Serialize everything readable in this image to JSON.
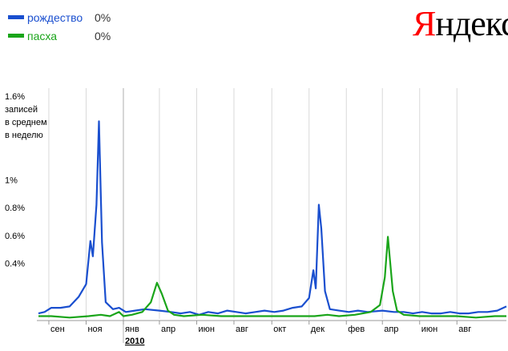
{
  "legend": [
    {
      "name": "рождество",
      "value": "0%",
      "color": "#1a4fcf"
    },
    {
      "name": "пасха",
      "value": "0%",
      "color": "#1aa51a"
    }
  ],
  "logo": {
    "first": "Я",
    "rest": "ндекс"
  },
  "chart_data": {
    "type": "line",
    "ylim": [
      0,
      1.6
    ],
    "yticks": [
      {
        "value": 0.4,
        "label": "0.4%"
      },
      {
        "value": 0.6,
        "label": "0.6%"
      },
      {
        "value": 0.8,
        "label": "0.8%"
      },
      {
        "value": 1.0,
        "label": "1%"
      },
      {
        "value": 1.6,
        "label": "1.6%"
      }
    ],
    "ylabel_lines": [
      "записей",
      "в среднем",
      "в неделю"
    ],
    "grid": true,
    "x_range": [
      "2009-08-15",
      "2011-09-20"
    ],
    "xticks": [
      {
        "date": "2009-09-01",
        "label": "сен"
      },
      {
        "date": "2009-11-01",
        "label": "ноя"
      },
      {
        "date": "2010-01-01",
        "label": "янв"
      },
      {
        "date": "2010-03-01",
        "label": "апр"
      },
      {
        "date": "2010-05-01",
        "label": "июн"
      },
      {
        "date": "2010-07-01",
        "label": "авг"
      },
      {
        "date": "2010-09-01",
        "label": "окт"
      },
      {
        "date": "2010-11-01",
        "label": "дек"
      },
      {
        "date": "2011-01-01",
        "label": "фев"
      },
      {
        "date": "2011-03-01",
        "label": "апр"
      },
      {
        "date": "2011-05-01",
        "label": "июн"
      },
      {
        "date": "2011-07-01",
        "label": "авг"
      }
    ],
    "year_label": {
      "date": "2010-01-01",
      "label": "2010"
    },
    "series": [
      {
        "name": "рождество",
        "color": "#1a4fcf",
        "points": [
          [
            "2009-08-15",
            0.04
          ],
          [
            "2009-08-25",
            0.05
          ],
          [
            "2009-09-05",
            0.08
          ],
          [
            "2009-09-20",
            0.08
          ],
          [
            "2009-10-05",
            0.09
          ],
          [
            "2009-10-20",
            0.16
          ],
          [
            "2009-11-01",
            0.25
          ],
          [
            "2009-11-08",
            0.56
          ],
          [
            "2009-11-12",
            0.45
          ],
          [
            "2009-11-18",
            0.82
          ],
          [
            "2009-11-22",
            1.42
          ],
          [
            "2009-11-27",
            0.55
          ],
          [
            "2009-12-03",
            0.12
          ],
          [
            "2009-12-15",
            0.07
          ],
          [
            "2009-12-25",
            0.08
          ],
          [
            "2010-01-05",
            0.05
          ],
          [
            "2010-01-20",
            0.06
          ],
          [
            "2010-02-05",
            0.07
          ],
          [
            "2010-03-01",
            0.06
          ],
          [
            "2010-03-20",
            0.05
          ],
          [
            "2010-04-05",
            0.04
          ],
          [
            "2010-04-20",
            0.05
          ],
          [
            "2010-05-05",
            0.03
          ],
          [
            "2010-05-20",
            0.05
          ],
          [
            "2010-06-05",
            0.04
          ],
          [
            "2010-06-20",
            0.06
          ],
          [
            "2010-07-05",
            0.05
          ],
          [
            "2010-07-20",
            0.04
          ],
          [
            "2010-08-05",
            0.05
          ],
          [
            "2010-08-20",
            0.06
          ],
          [
            "2010-09-05",
            0.05
          ],
          [
            "2010-09-20",
            0.06
          ],
          [
            "2010-10-05",
            0.08
          ],
          [
            "2010-10-20",
            0.09
          ],
          [
            "2010-11-01",
            0.15
          ],
          [
            "2010-11-08",
            0.35
          ],
          [
            "2010-11-12",
            0.22
          ],
          [
            "2010-11-17",
            0.82
          ],
          [
            "2010-11-21",
            0.65
          ],
          [
            "2010-11-27",
            0.2
          ],
          [
            "2010-12-05",
            0.07
          ],
          [
            "2010-12-20",
            0.06
          ],
          [
            "2011-01-05",
            0.05
          ],
          [
            "2011-01-20",
            0.06
          ],
          [
            "2011-02-05",
            0.05
          ],
          [
            "2011-03-01",
            0.06
          ],
          [
            "2011-03-20",
            0.05
          ],
          [
            "2011-04-05",
            0.05
          ],
          [
            "2011-04-20",
            0.04
          ],
          [
            "2011-05-05",
            0.05
          ],
          [
            "2011-05-20",
            0.04
          ],
          [
            "2011-06-05",
            0.04
          ],
          [
            "2011-06-20",
            0.05
          ],
          [
            "2011-07-05",
            0.04
          ],
          [
            "2011-07-20",
            0.04
          ],
          [
            "2011-08-05",
            0.05
          ],
          [
            "2011-08-20",
            0.05
          ],
          [
            "2011-09-05",
            0.06
          ],
          [
            "2011-09-20",
            0.09
          ]
        ]
      },
      {
        "name": "пасха",
        "color": "#1aa51a",
        "points": [
          [
            "2009-08-15",
            0.02
          ],
          [
            "2009-09-05",
            0.02
          ],
          [
            "2009-10-05",
            0.01
          ],
          [
            "2009-11-05",
            0.02
          ],
          [
            "2009-11-25",
            0.03
          ],
          [
            "2009-12-10",
            0.02
          ],
          [
            "2009-12-25",
            0.05
          ],
          [
            "2010-01-01",
            0.02
          ],
          [
            "2010-01-15",
            0.03
          ],
          [
            "2010-02-01",
            0.05
          ],
          [
            "2010-02-15",
            0.12
          ],
          [
            "2010-02-25",
            0.26
          ],
          [
            "2010-03-05",
            0.18
          ],
          [
            "2010-03-15",
            0.06
          ],
          [
            "2010-03-25",
            0.03
          ],
          [
            "2010-04-10",
            0.02
          ],
          [
            "2010-05-10",
            0.03
          ],
          [
            "2010-06-10",
            0.02
          ],
          [
            "2010-07-10",
            0.02
          ],
          [
            "2010-08-10",
            0.02
          ],
          [
            "2010-09-10",
            0.02
          ],
          [
            "2010-10-10",
            0.02
          ],
          [
            "2010-11-10",
            0.02
          ],
          [
            "2010-12-01",
            0.03
          ],
          [
            "2010-12-20",
            0.02
          ],
          [
            "2011-01-15",
            0.03
          ],
          [
            "2011-02-10",
            0.05
          ],
          [
            "2011-02-25",
            0.1
          ],
          [
            "2011-03-05",
            0.3
          ],
          [
            "2011-03-10",
            0.59
          ],
          [
            "2011-03-18",
            0.2
          ],
          [
            "2011-03-25",
            0.06
          ],
          [
            "2011-04-05",
            0.03
          ],
          [
            "2011-05-01",
            0.02
          ],
          [
            "2011-06-01",
            0.02
          ],
          [
            "2011-07-01",
            0.02
          ],
          [
            "2011-08-01",
            0.01
          ],
          [
            "2011-09-01",
            0.02
          ],
          [
            "2011-09-20",
            0.02
          ]
        ]
      }
    ]
  }
}
